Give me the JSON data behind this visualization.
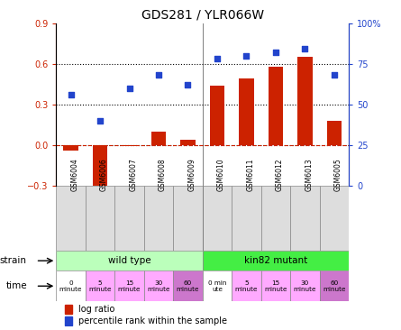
{
  "title": "GDS281 / YLR066W",
  "categories": [
    "GSM6004",
    "GSM6006",
    "GSM6007",
    "GSM6008",
    "GSM6009",
    "GSM6010",
    "GSM6011",
    "GSM6012",
    "GSM6013",
    "GSM6005"
  ],
  "log_ratio": [
    -0.04,
    -0.38,
    -0.01,
    0.1,
    0.04,
    0.44,
    0.49,
    0.58,
    0.65,
    0.18
  ],
  "percentile": [
    56,
    40,
    60,
    68,
    62,
    78,
    80,
    82,
    84,
    68
  ],
  "bar_color": "#cc2200",
  "dot_color": "#2244cc",
  "ylim_left": [
    -0.3,
    0.9
  ],
  "ylim_right": [
    0,
    100
  ],
  "yticks_left": [
    -0.3,
    0.0,
    0.3,
    0.6,
    0.9
  ],
  "yticks_right": [
    0,
    25,
    50,
    75,
    100
  ],
  "yticklabels_right": [
    "0",
    "25",
    "50",
    "75",
    "100%"
  ],
  "strain_labels": [
    "wild type",
    "kin82 mutant"
  ],
  "strain_colors": [
    "#bbffbb",
    "#44ee44"
  ],
  "time_labels": [
    "0\nminute",
    "5\nminute",
    "15\nminute",
    "30\nminute",
    "60\nminute",
    "0 min\nute",
    "5\nminute",
    "15\nminute",
    "30\nminute",
    "60\nminute"
  ],
  "time_colors": [
    "#ffffff",
    "#ffaaff",
    "#ffaaff",
    "#ffaaff",
    "#cc77cc",
    "#ffffff",
    "#ffaaff",
    "#ffaaff",
    "#ffaaff",
    "#cc77cc"
  ],
  "legend_items": [
    "log ratio",
    "percentile rank within the sample"
  ],
  "legend_colors": [
    "#cc2200",
    "#2244cc"
  ],
  "bar_width": 0.5,
  "xticklabel_fontsize": 6,
  "title_fontsize": 10
}
